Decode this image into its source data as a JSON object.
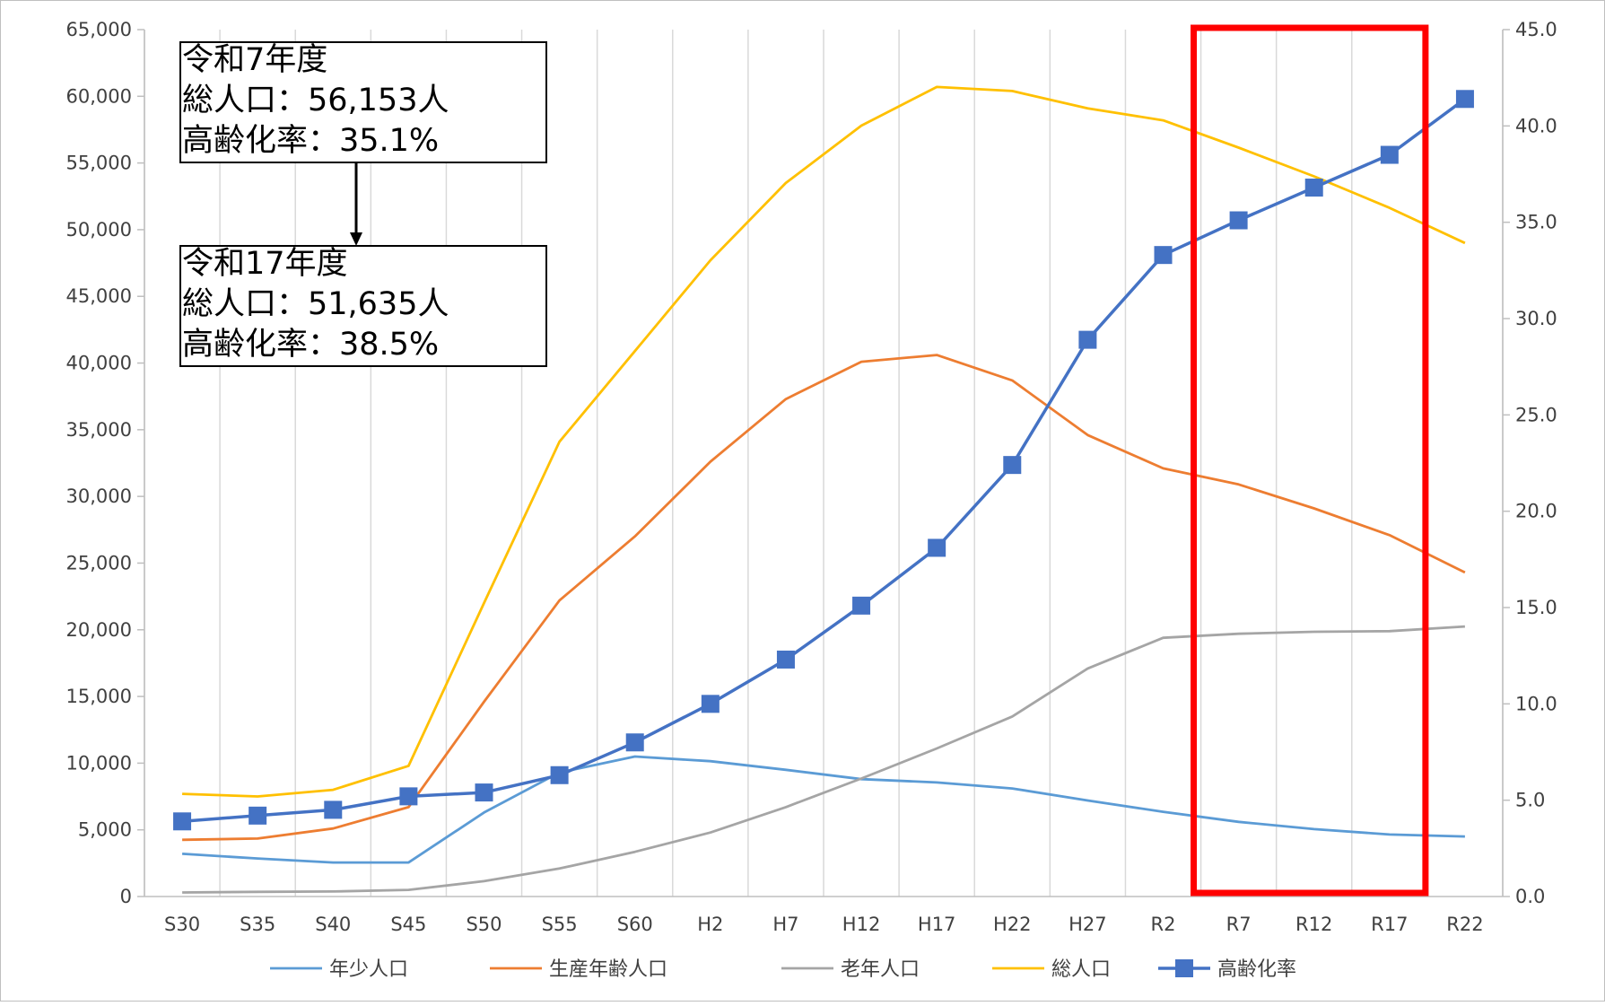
{
  "chart_data": {
    "type": "line",
    "categories": [
      "S30",
      "S35",
      "S40",
      "S45",
      "S50",
      "S55",
      "S60",
      "H2",
      "H7",
      "H12",
      "H17",
      "H22",
      "H27",
      "R2",
      "R7",
      "R12",
      "R17",
      "R22"
    ],
    "y_left": {
      "ylim": [
        0,
        65000
      ],
      "step": 5000,
      "tick_labels": [
        "0",
        "5,000",
        "10,000",
        "15,000",
        "20,000",
        "25,000",
        "30,000",
        "35,000",
        "40,000",
        "45,000",
        "50,000",
        "55,000",
        "60,000",
        "65,000"
      ]
    },
    "y_right": {
      "ylim": [
        0,
        45
      ],
      "step": 5,
      "tick_labels": [
        "0.0",
        "5.0",
        "10.0",
        "15.0",
        "20.0",
        "25.0",
        "30.0",
        "35.0",
        "40.0",
        "45.0"
      ]
    },
    "grid": "vertical",
    "legend_position": "bottom",
    "series": [
      {
        "name": "年少人口",
        "axis": "left",
        "color": "#5B9BD5",
        "marker": "none",
        "values": [
          3200,
          2850,
          2550,
          2550,
          6300,
          9300,
          10500,
          10150,
          9500,
          8800,
          8550,
          8100,
          7200,
          6350,
          5600,
          5050,
          4650,
          4500
        ]
      },
      {
        "name": "生産年齢人口",
        "axis": "left",
        "color": "#ED7D31",
        "marker": "none",
        "values": [
          4250,
          4350,
          5100,
          6700,
          14600,
          22200,
          27000,
          32600,
          37300,
          40100,
          40600,
          38700,
          34600,
          32100,
          30900,
          29100,
          27100,
          24300
        ]
      },
      {
        "name": "老年人口",
        "axis": "left",
        "color": "#A5A5A5",
        "marker": "none",
        "values": [
          300,
          350,
          380,
          500,
          1150,
          2100,
          3350,
          4800,
          6700,
          8850,
          11100,
          13500,
          17100,
          19400,
          19700,
          19850,
          19900,
          20250
        ]
      },
      {
        "name": "総人口",
        "axis": "left",
        "color": "#FFC000",
        "marker": "none",
        "values": [
          7700,
          7500,
          8000,
          9800,
          22000,
          34100,
          40900,
          47700,
          53500,
          57800,
          60700,
          60400,
          59100,
          58200,
          56153,
          54000,
          51635,
          49000
        ]
      },
      {
        "name": "高齢化率",
        "axis": "right",
        "color": "#4472C4",
        "marker": "square",
        "values": [
          3.9,
          4.2,
          4.5,
          5.2,
          5.4,
          6.3,
          8.0,
          10.0,
          12.3,
          15.1,
          18.1,
          22.4,
          28.9,
          33.3,
          35.1,
          36.8,
          38.5,
          41.4
        ]
      }
    ],
    "annotations": [
      {
        "lines": [
          "令和7年度",
          "総人口：56,153人",
          "高齢化率：35.1%"
        ]
      },
      {
        "lines": [
          "令和17年度",
          "総人口：51,635人",
          "高齢化率：38.5%"
        ]
      }
    ],
    "highlight": {
      "categories": [
        "R7",
        "R17"
      ],
      "color": "#FF0000"
    }
  }
}
